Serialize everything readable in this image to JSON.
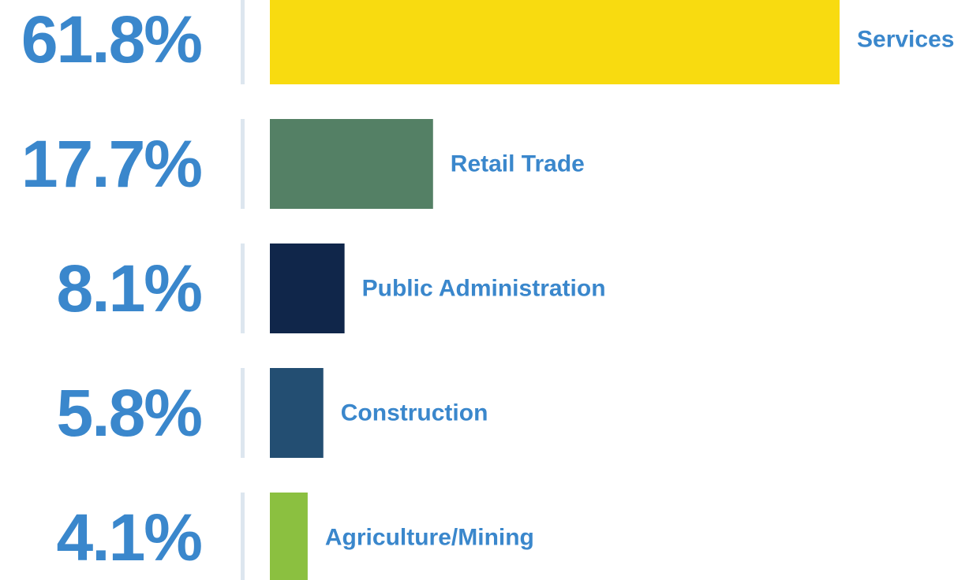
{
  "chart_data": {
    "type": "bar",
    "orientation": "horizontal",
    "categories": [
      "Services",
      "Retail Trade",
      "Public Administration",
      "Construction",
      "Agriculture/Mining"
    ],
    "values": [
      61.8,
      17.7,
      8.1,
      5.8,
      4.1
    ],
    "value_labels": [
      "61.8%",
      "17.7%",
      "8.1%",
      "5.8%",
      "4.1%"
    ],
    "colors": [
      "#f8db10",
      "#548065",
      "#10264a",
      "#234e72",
      "#8bc040"
    ]
  }
}
